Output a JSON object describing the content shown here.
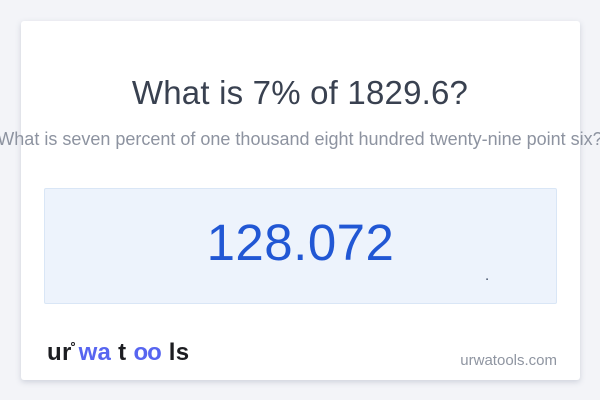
{
  "colors": {
    "page_bg": "#f3f4f8",
    "card_bg": "#ffffff",
    "title_text": "#394150",
    "subtitle_text": "#8d93a0",
    "result_box_bg": "#edf3fc",
    "result_box_border": "#d9e6f6",
    "result_text": "#2157d4",
    "logo_dark": "#1c1d21",
    "logo_blue": "#5765f0",
    "site_text": "#8f95a1"
  },
  "question": {
    "title": "What is 7% of 1829.6?",
    "subtitle": "What is seven percent of one thousand eight hundred twenty-nine point six?"
  },
  "result": {
    "value": "128.072",
    "stray_mark": "."
  },
  "logo": {
    "segments": [
      {
        "text": "ur",
        "color": "dark"
      },
      {
        "text": "wa",
        "color": "blue"
      },
      {
        "text": "t",
        "color": "dark"
      },
      {
        "text": "oo",
        "color": "blue"
      },
      {
        "text": "ls",
        "color": "dark"
      }
    ]
  },
  "footer": {
    "site_url": "urwatools.com"
  }
}
